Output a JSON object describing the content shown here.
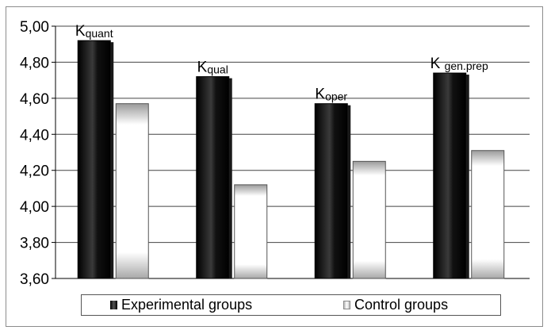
{
  "chart_data": {
    "type": "bar",
    "categories": [
      {
        "main": "K",
        "sub": "quant"
      },
      {
        "main": "K",
        "sub": "qual"
      },
      {
        "main": "K",
        "sub": "oper"
      },
      {
        "main": "K ",
        "sub": "gen.prep"
      }
    ],
    "series": [
      {
        "name": "Experimental groups",
        "values": [
          4.92,
          4.72,
          4.57,
          4.74
        ],
        "color": "#000000"
      },
      {
        "name": "Control groups",
        "values": [
          4.57,
          4.12,
          4.25,
          4.31
        ],
        "color": "#e0e0e0"
      }
    ],
    "ylim": [
      3.6,
      5.0
    ],
    "yticks": [
      "3,60",
      "3,80",
      "4,00",
      "4,20",
      "4,40",
      "4,60",
      "4,80",
      "5,00"
    ],
    "ytick_values": [
      3.6,
      3.8,
      4.0,
      4.2,
      4.4,
      4.6,
      4.8,
      5.0
    ],
    "grid": true,
    "legend_position": "bottom"
  },
  "legend": {
    "experimental_label": "Experimental groups",
    "control_label": "Control groups"
  }
}
